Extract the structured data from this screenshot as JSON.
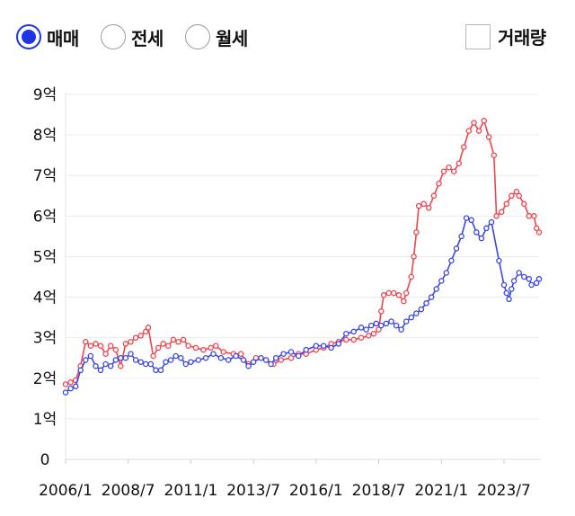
{
  "controls": {
    "radios": [
      {
        "label": "매매",
        "selected": true
      },
      {
        "label": "전세",
        "selected": false
      },
      {
        "label": "월세",
        "selected": false
      }
    ],
    "volume_checkbox": {
      "label": "거래량",
      "checked": false
    }
  },
  "colors": {
    "sale": "#f0444e",
    "jeonse": "#3a45e8",
    "accent": "#1e35e6"
  },
  "chart_data": {
    "type": "line",
    "title": "",
    "xlabel": "",
    "ylabel": "",
    "xlim": [
      2006.0,
      2024.9
    ],
    "ylim": [
      0,
      9
    ],
    "grid": true,
    "x_ticks": [
      {
        "x": 2006.0,
        "label": "2006/1"
      },
      {
        "x": 2008.5,
        "label": "2008/7"
      },
      {
        "x": 2011.0,
        "label": "2011/1"
      },
      {
        "x": 2013.5,
        "label": "2013/7"
      },
      {
        "x": 2016.0,
        "label": "2016/1"
      },
      {
        "x": 2018.5,
        "label": "2018/7"
      },
      {
        "x": 2021.0,
        "label": "2021/1"
      },
      {
        "x": 2023.5,
        "label": "2023/7"
      }
    ],
    "y_ticks": [
      {
        "y": 0,
        "label": "0"
      },
      {
        "y": 1,
        "label": "1억"
      },
      {
        "y": 2,
        "label": "2억"
      },
      {
        "y": 3,
        "label": "3억"
      },
      {
        "y": 4,
        "label": "4억"
      },
      {
        "y": 5,
        "label": "5억"
      },
      {
        "y": 6,
        "label": "6억"
      },
      {
        "y": 7,
        "label": "7억"
      },
      {
        "y": 8,
        "label": "8억"
      },
      {
        "y": 9,
        "label": "9억"
      }
    ],
    "series": [
      {
        "color": "#f0444e",
        "points": [
          [
            2006.0,
            1.85
          ],
          [
            2006.2,
            1.9
          ],
          [
            2006.4,
            1.95
          ],
          [
            2006.6,
            2.3
          ],
          [
            2006.8,
            2.9
          ],
          [
            2007.0,
            2.8
          ],
          [
            2007.2,
            2.85
          ],
          [
            2007.4,
            2.8
          ],
          [
            2007.6,
            2.6
          ],
          [
            2007.8,
            2.8
          ],
          [
            2008.0,
            2.7
          ],
          [
            2008.2,
            2.3
          ],
          [
            2008.4,
            2.85
          ],
          [
            2008.6,
            2.9
          ],
          [
            2008.8,
            3.0
          ],
          [
            2009.0,
            3.05
          ],
          [
            2009.2,
            3.15
          ],
          [
            2009.3,
            3.25
          ],
          [
            2009.5,
            2.55
          ],
          [
            2009.7,
            2.75
          ],
          [
            2009.9,
            2.85
          ],
          [
            2010.1,
            2.8
          ],
          [
            2010.3,
            2.95
          ],
          [
            2010.5,
            2.9
          ],
          [
            2010.7,
            2.95
          ],
          [
            2010.9,
            2.8
          ],
          [
            2011.2,
            2.75
          ],
          [
            2011.5,
            2.7
          ],
          [
            2011.8,
            2.75
          ],
          [
            2012.0,
            2.8
          ],
          [
            2012.3,
            2.65
          ],
          [
            2012.7,
            2.6
          ],
          [
            2013.0,
            2.6
          ],
          [
            2013.3,
            2.35
          ],
          [
            2013.6,
            2.5
          ],
          [
            2014.0,
            2.45
          ],
          [
            2014.3,
            2.35
          ],
          [
            2014.6,
            2.45
          ],
          [
            2015.0,
            2.5
          ],
          [
            2015.3,
            2.6
          ],
          [
            2015.6,
            2.6
          ],
          [
            2016.0,
            2.7
          ],
          [
            2016.3,
            2.75
          ],
          [
            2016.6,
            2.85
          ],
          [
            2016.9,
            2.9
          ],
          [
            2017.2,
            2.95
          ],
          [
            2017.5,
            2.95
          ],
          [
            2017.8,
            3.0
          ],
          [
            2018.1,
            3.05
          ],
          [
            2018.3,
            3.1
          ],
          [
            2018.5,
            3.2
          ],
          [
            2018.6,
            3.65
          ],
          [
            2018.7,
            4.05
          ],
          [
            2018.9,
            4.1
          ],
          [
            2019.1,
            4.1
          ],
          [
            2019.3,
            4.05
          ],
          [
            2019.5,
            3.9
          ],
          [
            2019.6,
            4.1
          ],
          [
            2019.8,
            4.5
          ],
          [
            2019.9,
            5.0
          ],
          [
            2020.0,
            5.6
          ],
          [
            2020.1,
            6.25
          ],
          [
            2020.3,
            6.3
          ],
          [
            2020.5,
            6.2
          ],
          [
            2020.7,
            6.5
          ],
          [
            2020.9,
            6.8
          ],
          [
            2021.1,
            7.1
          ],
          [
            2021.3,
            7.2
          ],
          [
            2021.5,
            7.1
          ],
          [
            2021.7,
            7.3
          ],
          [
            2021.9,
            7.7
          ],
          [
            2022.1,
            8.1
          ],
          [
            2022.3,
            8.3
          ],
          [
            2022.5,
            8.1
          ],
          [
            2022.7,
            8.35
          ],
          [
            2022.9,
            7.95
          ],
          [
            2023.1,
            7.5
          ],
          [
            2023.2,
            6.0
          ],
          [
            2023.4,
            6.1
          ],
          [
            2023.6,
            6.3
          ],
          [
            2023.8,
            6.5
          ],
          [
            2024.0,
            6.6
          ],
          [
            2024.1,
            6.5
          ],
          [
            2024.3,
            6.3
          ],
          [
            2024.5,
            6.0
          ],
          [
            2024.7,
            6.0
          ],
          [
            2024.8,
            5.7
          ],
          [
            2024.9,
            5.6
          ]
        ]
      },
      {
        "color": "#3a45e8",
        "points": [
          [
            2006.0,
            1.65
          ],
          [
            2006.2,
            1.75
          ],
          [
            2006.4,
            1.8
          ],
          [
            2006.6,
            2.2
          ],
          [
            2006.8,
            2.45
          ],
          [
            2007.0,
            2.55
          ],
          [
            2007.2,
            2.3
          ],
          [
            2007.4,
            2.2
          ],
          [
            2007.6,
            2.35
          ],
          [
            2007.8,
            2.3
          ],
          [
            2008.0,
            2.45
          ],
          [
            2008.2,
            2.5
          ],
          [
            2008.4,
            2.5
          ],
          [
            2008.6,
            2.6
          ],
          [
            2008.8,
            2.45
          ],
          [
            2009.0,
            2.4
          ],
          [
            2009.2,
            2.35
          ],
          [
            2009.4,
            2.35
          ],
          [
            2009.6,
            2.2
          ],
          [
            2009.8,
            2.2
          ],
          [
            2010.0,
            2.4
          ],
          [
            2010.2,
            2.45
          ],
          [
            2010.4,
            2.55
          ],
          [
            2010.6,
            2.5
          ],
          [
            2010.8,
            2.35
          ],
          [
            2011.0,
            2.4
          ],
          [
            2011.3,
            2.45
          ],
          [
            2011.6,
            2.5
          ],
          [
            2011.9,
            2.6
          ],
          [
            2012.2,
            2.5
          ],
          [
            2012.5,
            2.45
          ],
          [
            2012.8,
            2.55
          ],
          [
            2013.1,
            2.45
          ],
          [
            2013.3,
            2.3
          ],
          [
            2013.5,
            2.4
          ],
          [
            2013.8,
            2.5
          ],
          [
            2014.0,
            2.45
          ],
          [
            2014.2,
            2.35
          ],
          [
            2014.4,
            2.5
          ],
          [
            2014.7,
            2.6
          ],
          [
            2015.0,
            2.65
          ],
          [
            2015.3,
            2.55
          ],
          [
            2015.6,
            2.7
          ],
          [
            2016.0,
            2.8
          ],
          [
            2016.3,
            2.8
          ],
          [
            2016.6,
            2.75
          ],
          [
            2016.9,
            2.85
          ],
          [
            2017.2,
            3.1
          ],
          [
            2017.5,
            3.15
          ],
          [
            2017.8,
            3.25
          ],
          [
            2018.0,
            3.2
          ],
          [
            2018.2,
            3.3
          ],
          [
            2018.4,
            3.35
          ],
          [
            2018.6,
            3.3
          ],
          [
            2018.8,
            3.35
          ],
          [
            2019.0,
            3.4
          ],
          [
            2019.2,
            3.3
          ],
          [
            2019.4,
            3.2
          ],
          [
            2019.6,
            3.4
          ],
          [
            2019.8,
            3.5
          ],
          [
            2020.0,
            3.6
          ],
          [
            2020.2,
            3.7
          ],
          [
            2020.4,
            3.85
          ],
          [
            2020.6,
            4.0
          ],
          [
            2020.8,
            4.2
          ],
          [
            2021.0,
            4.4
          ],
          [
            2021.2,
            4.6
          ],
          [
            2021.4,
            4.9
          ],
          [
            2021.6,
            5.2
          ],
          [
            2021.8,
            5.5
          ],
          [
            2022.0,
            5.95
          ],
          [
            2022.2,
            5.9
          ],
          [
            2022.4,
            5.6
          ],
          [
            2022.6,
            5.45
          ],
          [
            2022.8,
            5.7
          ],
          [
            2023.0,
            5.85
          ],
          [
            2023.3,
            4.9
          ],
          [
            2023.5,
            4.3
          ],
          [
            2023.6,
            4.1
          ],
          [
            2023.7,
            3.95
          ],
          [
            2023.8,
            4.2
          ],
          [
            2023.9,
            4.4
          ],
          [
            2024.1,
            4.6
          ],
          [
            2024.3,
            4.5
          ],
          [
            2024.5,
            4.45
          ],
          [
            2024.6,
            4.3
          ],
          [
            2024.8,
            4.35
          ],
          [
            2024.9,
            4.45
          ]
        ]
      }
    ]
  }
}
